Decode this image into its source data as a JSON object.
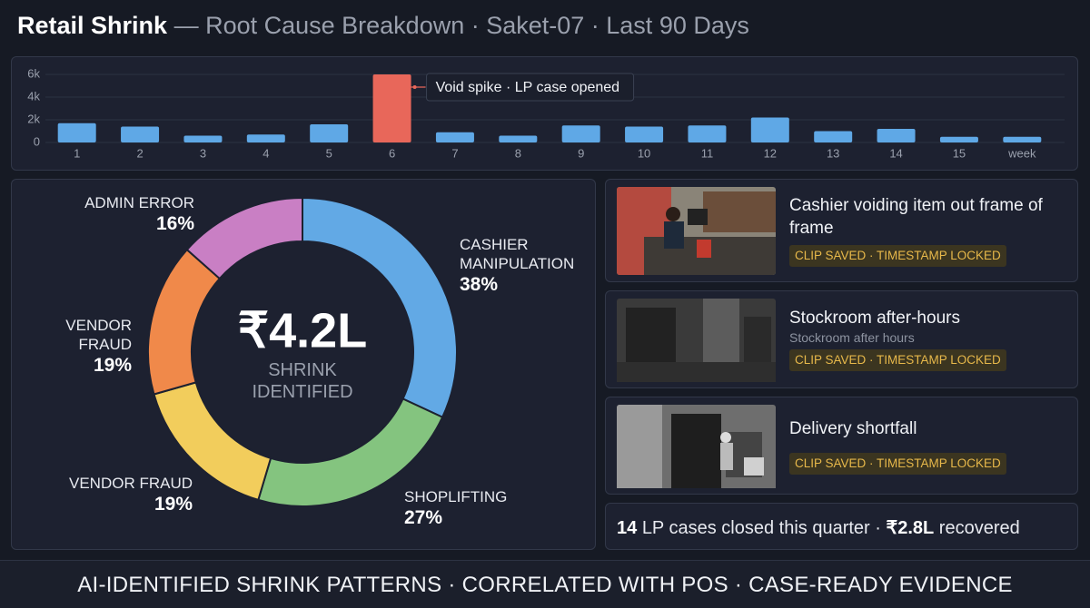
{
  "header": {
    "title": "Retail Shrink",
    "subtitle": "— Root Cause Breakdown · Saket-07 · Last 90 Days"
  },
  "chart_data": [
    {
      "type": "bar",
      "categories": [
        "1",
        "2",
        "3",
        "4",
        "5",
        "6",
        "7",
        "8",
        "9",
        "10",
        "11",
        "12",
        "13",
        "14",
        "15",
        "week"
      ],
      "values": [
        1700,
        1400,
        600,
        700,
        1600,
        6000,
        900,
        600,
        1500,
        1400,
        1500,
        2200,
        1000,
        1200,
        500,
        500
      ],
      "colors": [
        "#5fa8e6",
        "#5fa8e6",
        "#5fa8e6",
        "#5fa8e6",
        "#5fa8e6",
        "#e8675a",
        "#5fa8e6",
        "#5fa8e6",
        "#5fa8e6",
        "#5fa8e6",
        "#5fa8e6",
        "#5fa8e6",
        "#5fa8e6",
        "#5fa8e6",
        "#5fa8e6",
        "#5fa8e6"
      ],
      "ylim": [
        0,
        6000
      ],
      "yticks": [
        0,
        {
          "value": 2000,
          "label": "2k"
        },
        {
          "value": 4000,
          "label": "4k"
        },
        {
          "value": 6000,
          "label": "6k"
        }
      ],
      "grid": true,
      "annotation": "Void spike · LP case opened"
    },
    {
      "type": "donut",
      "categories": [
        "CASHIER MANIPULATION",
        "SHOPLIFTING",
        "VENDOR FRAUD",
        "VENDOR FRAUD",
        "ADMIN ERROR"
      ],
      "values": [
        38,
        27,
        19,
        19,
        16
      ],
      "value_labels": [
        "38%",
        "27%",
        "19%",
        "19%",
        "16%"
      ],
      "colors": [
        "#62a9e5",
        "#84c47f",
        "#f2cd5c",
        "#f0894a",
        "#c97fc4"
      ],
      "center_value": "₹4.2L",
      "center_label": "SHRINK IDENTIFIED"
    }
  ],
  "clips": [
    {
      "title": "Cashier voiding item out frame of frame",
      "badge": "CLIP SAVED · TIMESTAMP LOCKED"
    },
    {
      "title": "Stockroom after-hours",
      "caption": "Stockroom after hours",
      "badge": "CLIP SAVED · TIMESTAMP LOCKED"
    },
    {
      "title": "Delivery shortfall",
      "badge": "CLIP SAVED · TIMESTAMP LOCKED"
    }
  ],
  "summary": [
    "14",
    "LP cases closed this quarter ·",
    "₹2.8L",
    "recovered"
  ],
  "footer": "AI-IDENTIFIED SHRINK PATTERNS · CORRELATED WITH POS · CASE-READY EVIDENCE"
}
